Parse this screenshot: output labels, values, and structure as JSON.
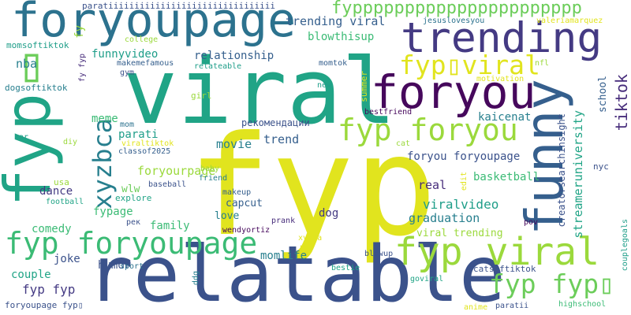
{
  "palette": {
    "yellow": "#e1e41e",
    "lime": "#9bd93c",
    "green_light": "#6ccd5a",
    "green": "#3bbb75",
    "teal_green": "#20a486",
    "teal": "#1f9e89",
    "cyan_blue": "#277f8e",
    "blue": "#2c728e",
    "blue_dark": "#355f8d",
    "indigo": "#3b528b",
    "purple_blue": "#443a83",
    "purple": "#472d7b",
    "purple_dark": "#46085c"
  },
  "words": {
    "fyp": "fyp",
    "relatable": "relatable",
    "viral": "viral",
    "foryoupage": "foryoupage",
    "trending": "trending",
    "foryou": "foryou",
    "fyp_vertical": "fyp",
    "funny": "funny",
    "fyp_foryoupage": "fyp foryoupage",
    "fyp_viral": "fyp viral",
    "fyp_foryou": "fyp foryou",
    "xyzbca": "xyzbca",
    "fyp_fyp_box": "fyp fyp▯",
    "fyp_box_viral": "fyp▯viral",
    "fypppp": "fypppppppppppppppppppppp",
    "tiktok": "tiktok",
    "box_left": "▯",
    "paratii_long": "paratіііііііііііііііііііііііііііііііі",
    "trending_viral": "trending viral",
    "blowthisup": "blowthisup",
    "jesuslovesyou": "jesuslovesyou",
    "valeriamarquez": "valeriamarquez",
    "momsoftiktok": "momsoftiktok",
    "college": "college",
    "funnyvideo": "funnyvideo",
    "relationship": "relationship",
    "nba": "nba",
    "makemefamous": "makemefamous",
    "relateable": "relateable",
    "gym": "gym",
    "momtok": "momtok",
    "new": "new",
    "nfl": "nfl",
    "fy_fyp": "fy fyp",
    "fy": "fy",
    "dogsoftiktok": "dogsoftiktok",
    "girl": "girl",
    "summer": "summer",
    "motivation": "motivation",
    "school": "school",
    "meme": "meme",
    "mom": "mom",
    "parati": "parati",
    "recommendations": "рекомендации",
    "bestfriend": "bestfriend",
    "kaicenat": "kaicenat",
    "streameruniversity": "streameruniversity",
    "creatorsearchinsight": "creatorsearchinsight",
    "car": "car",
    "diy": "diy",
    "viraltiktok": "viraltiktok",
    "classof2025": "classof2025",
    "movie": "movie",
    "trend": "trend",
    "cat": "cat",
    "foryou_foryoupage": "foryou foryoupage",
    "foryourpage": "foryourpage",
    "baby": "baby",
    "friend": "friend",
    "basketball": "basketball",
    "nyc": "nyc",
    "usa": "usa",
    "dance": "dance",
    "wlw": "wlw",
    "explore": "explore",
    "baseball": "baseball",
    "real": "real",
    "edit": "edit",
    "football": "football",
    "fypage": "fypage",
    "makeup": "makeup",
    "capcut": "capcut",
    "viralvideo": "viralvideo",
    "pek": "рек",
    "love": "love",
    "dog": "dog",
    "graduation": "graduation",
    "family": "family",
    "wendyortiz": "wendyortiz",
    "comedy": "comedy",
    "prank": "prank",
    "pov": "pov",
    "viral_trending": "viral trending",
    "xybca": "xybca",
    "bf": "bf",
    "joke": "joke",
    "humor": "humor",
    "momlife": "momlife",
    "blowup": "blowup",
    "couplegoals": "couplegoals",
    "couple": "couple",
    "sport": "sport",
    "ddg": "ddg",
    "bestie": "bestie",
    "catsoftiktok": "catsoftiktok",
    "fyp_fyp": "fyp fyp",
    "goviral": "goviral",
    "foryoupage_fyp": "foryoupage fyp▯",
    "anime": "anime",
    "paratii": "paratii",
    "highschool": "highschool"
  }
}
